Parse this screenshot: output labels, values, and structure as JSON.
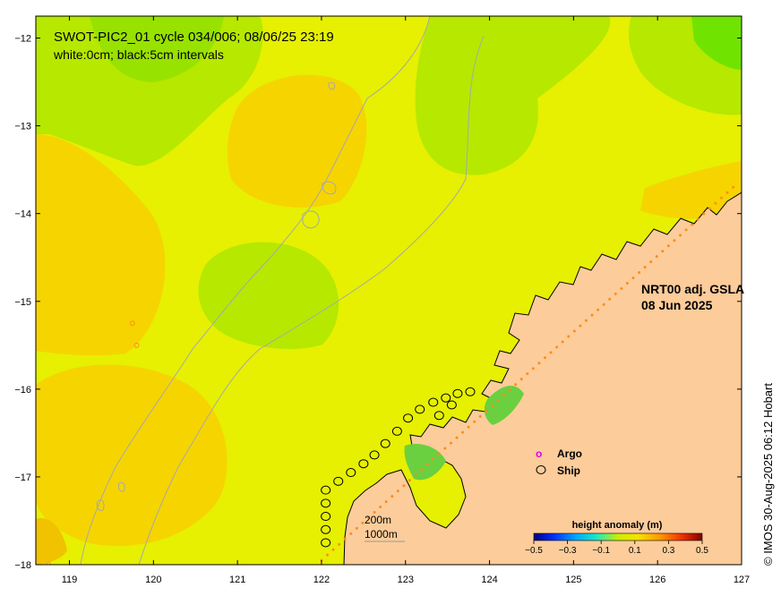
{
  "title": {
    "line1": "SWOT-PIC2_01 cycle 034/006; 08/06/25 23:19",
    "line2": "white:0cm; black:5cm intervals"
  },
  "product": {
    "name": "NRT00 adj. GSLA",
    "date": "08 Jun 2025"
  },
  "legend": {
    "argo_symbol": "o",
    "argo_label": "Argo",
    "ship_label": "Ship",
    "argo_color": "#e000e0"
  },
  "isobaths": {
    "shallow": "200m",
    "deep": "1000m"
  },
  "colorbar": {
    "title": "height anomaly (m)",
    "tick_labels": [
      "−0.5",
      "−0.3",
      "−0.1",
      "0.1",
      "0.3",
      "0.5"
    ]
  },
  "credit": "© IMOS 30-Aug-2025 06:12 Hobart",
  "axes": {
    "x_ticks": [
      "119",
      "120",
      "121",
      "122",
      "123",
      "124",
      "125",
      "126",
      "127"
    ],
    "y_ticks": [
      "−12",
      "−13",
      "−14",
      "−15",
      "−16",
      "−17",
      "−18"
    ]
  },
  "chart_data": {
    "type": "heatmap",
    "title": "SWOT-PIC2_01 cycle 034/006; 08/06/25 23:19",
    "xlabel": "",
    "ylabel": "",
    "xlim": [
      118.6,
      127
    ],
    "ylim": [
      -18,
      -11.75
    ],
    "x_ticks": [
      119,
      120,
      121,
      122,
      123,
      124,
      125,
      126,
      127
    ],
    "y_ticks": [
      -12,
      -13,
      -14,
      -15,
      -16,
      -17,
      -18
    ],
    "color_range": [
      -0.5,
      0.5
    ],
    "colors": {
      "ocean_base": "#e6f000",
      "positive": "#f6d400",
      "negative": "#8ae000",
      "strong_negative": "#64e400",
      "land": "#fccc9a"
    }
  }
}
